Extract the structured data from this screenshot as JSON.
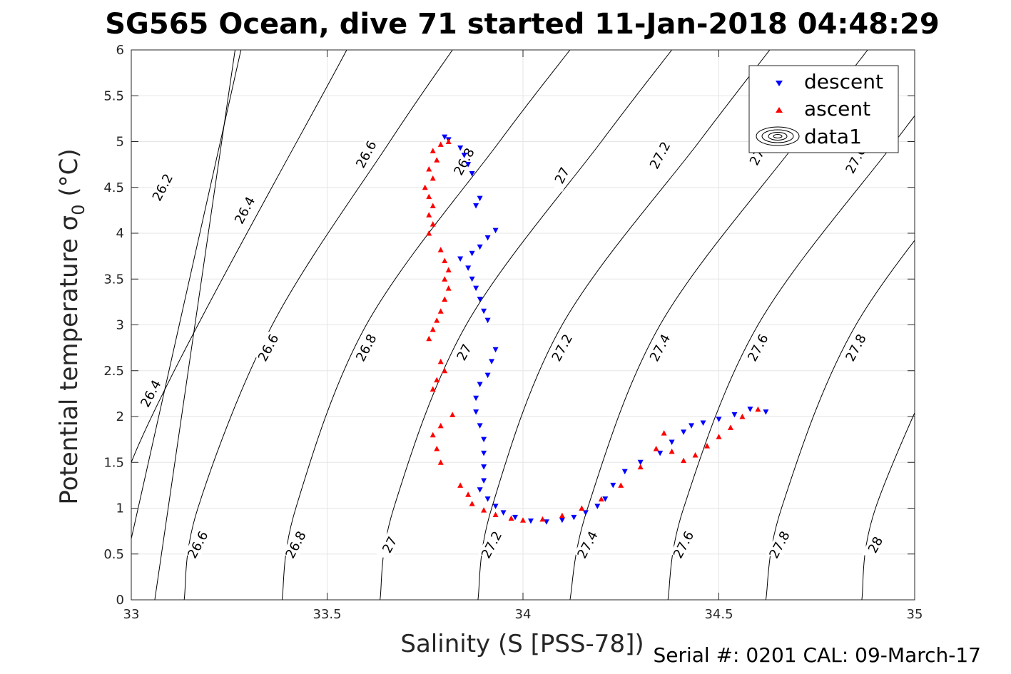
{
  "chart_data": {
    "type": "scatter",
    "title": "SG565 Ocean, dive 71 started 11-Jan-2018 04:48:29",
    "xlabel": "Salinity (S [PSS-78])",
    "ylabel": "Potential temperature σ",
    "ylabel_sub": "0",
    "ylabel_unit": " (°C)",
    "footer": "Serial #: 0201  CAL: 09-March-17",
    "xlim": [
      33,
      35
    ],
    "ylim": [
      0,
      6
    ],
    "xticks": [
      "33",
      "33.5",
      "34",
      "34.5",
      "35"
    ],
    "yticks": [
      "0",
      "0.5",
      "1",
      "1.5",
      "2",
      "2.5",
      "3",
      "3.5",
      "4",
      "4.5",
      "5",
      "5.5",
      "6"
    ],
    "grid": true,
    "legend_position": "top-right",
    "legend": [
      "descent",
      "ascent",
      "data1"
    ],
    "colors": {
      "descent": "#0000ff",
      "ascent": "#ff0000",
      "contour": "#000000"
    },
    "contour_levels": [
      {
        "level": "26",
        "anchors": [
          [
            0,
            32.965
          ],
          [
            6,
            33.28
          ]
        ]
      },
      {
        "level": "26.2",
        "anchors": [
          [
            0,
            33.06
          ],
          [
            6,
            33.265
          ]
        ]
      },
      {
        "level": "26.4",
        "anchors": [
          [
            0,
            32.995
          ],
          [
            1.5,
            33.0
          ],
          [
            6,
            33.55
          ]
        ]
      },
      {
        "level": "26.6",
        "anchors": [
          [
            0,
            33.135
          ],
          [
            1,
            33.17
          ],
          [
            3,
            33.36
          ],
          [
            5,
            33.66
          ],
          [
            6,
            33.82
          ]
        ]
      },
      {
        "level": "26.8",
        "anchors": [
          [
            0,
            33.385
          ],
          [
            1,
            33.42
          ],
          [
            3,
            33.6
          ],
          [
            5,
            33.94
          ],
          [
            6,
            34.12
          ]
        ]
      },
      {
        "level": "27",
        "anchors": [
          [
            0,
            33.635
          ],
          [
            1,
            33.67
          ],
          [
            3,
            33.855
          ],
          [
            5,
            34.2
          ],
          [
            6,
            34.38
          ]
        ]
      },
      {
        "level": "27.2",
        "anchors": [
          [
            0,
            33.885
          ],
          [
            1,
            33.92
          ],
          [
            3,
            34.1
          ],
          [
            5,
            34.45
          ],
          [
            6,
            34.63
          ]
        ]
      },
      {
        "level": "27.4",
        "anchors": [
          [
            0,
            34.12
          ],
          [
            1,
            34.165
          ],
          [
            3,
            34.35
          ],
          [
            5,
            34.7
          ],
          [
            6,
            34.88
          ]
        ]
      },
      {
        "level": "27.6",
        "anchors": [
          [
            0,
            34.37
          ],
          [
            1,
            34.41
          ],
          [
            3,
            34.6
          ],
          [
            5,
            34.95
          ],
          [
            6,
            35.13
          ]
        ]
      },
      {
        "level": "27.8",
        "anchors": [
          [
            0,
            34.62
          ],
          [
            1,
            34.66
          ],
          [
            3,
            34.85
          ],
          [
            5,
            35.2
          ]
        ]
      },
      {
        "level": "28",
        "anchors": [
          [
            0,
            34.865
          ],
          [
            1,
            34.9
          ],
          [
            3,
            35.1
          ]
        ]
      }
    ],
    "contour_labels": [
      {
        "text": "26.2",
        "x": 33.08,
        "y": 4.5
      },
      {
        "text": "26.4",
        "x": 33.29,
        "y": 4.25
      },
      {
        "text": "26.6",
        "x": 33.6,
        "y": 4.86
      },
      {
        "text": "26.8",
        "x": 33.85,
        "y": 4.78
      },
      {
        "text": "27",
        "x": 34.1,
        "y": 4.63
      },
      {
        "text": "27.2",
        "x": 34.35,
        "y": 4.85
      },
      {
        "text": "27.",
        "x": 34.6,
        "y": 4.85
      },
      {
        "text": "27.6",
        "x": 34.85,
        "y": 4.8
      },
      {
        "text": "26.4",
        "x": 33.05,
        "y": 2.25
      },
      {
        "text": "26.6",
        "x": 33.35,
        "y": 2.75
      },
      {
        "text": "26.8",
        "x": 33.6,
        "y": 2.75
      },
      {
        "text": "27",
        "x": 33.85,
        "y": 2.7
      },
      {
        "text": "27.2",
        "x": 34.1,
        "y": 2.75
      },
      {
        "text": "27.4",
        "x": 34.35,
        "y": 2.75
      },
      {
        "text": "27.6",
        "x": 34.6,
        "y": 2.75
      },
      {
        "text": "27.8",
        "x": 34.85,
        "y": 2.75
      },
      {
        "text": "26.6",
        "x": 33.17,
        "y": 0.6
      },
      {
        "text": "26.8",
        "x": 33.42,
        "y": 0.6
      },
      {
        "text": "27",
        "x": 33.66,
        "y": 0.6
      },
      {
        "text": "27.2",
        "x": 33.92,
        "y": 0.6
      },
      {
        "text": "27.4",
        "x": 34.165,
        "y": 0.6
      },
      {
        "text": "27.6",
        "x": 34.41,
        "y": 0.6
      },
      {
        "text": "27.8",
        "x": 34.655,
        "y": 0.6
      },
      {
        "text": "28",
        "x": 34.9,
        "y": 0.6
      }
    ],
    "series": [
      {
        "name": "descent",
        "marker": "triangle-down",
        "color": "#0000ff",
        "points": [
          [
            33.8,
            5.05
          ],
          [
            33.81,
            5.02
          ],
          [
            33.84,
            4.93
          ],
          [
            33.85,
            4.85
          ],
          [
            33.86,
            4.75
          ],
          [
            33.87,
            4.65
          ],
          [
            33.88,
            4.3
          ],
          [
            33.89,
            4.38
          ],
          [
            33.93,
            4.03
          ],
          [
            33.91,
            3.95
          ],
          [
            33.89,
            3.85
          ],
          [
            33.87,
            3.78
          ],
          [
            33.84,
            3.72
          ],
          [
            33.86,
            3.62
          ],
          [
            33.87,
            3.5
          ],
          [
            33.88,
            3.4
          ],
          [
            33.89,
            3.28
          ],
          [
            33.9,
            3.15
          ],
          [
            33.91,
            3.05
          ],
          [
            33.93,
            2.73
          ],
          [
            33.92,
            2.6
          ],
          [
            33.91,
            2.45
          ],
          [
            33.89,
            2.35
          ],
          [
            33.88,
            2.2
          ],
          [
            33.88,
            2.05
          ],
          [
            33.89,
            1.9
          ],
          [
            33.9,
            1.75
          ],
          [
            33.9,
            1.6
          ],
          [
            33.9,
            1.45
          ],
          [
            33.9,
            1.3
          ],
          [
            33.89,
            1.2
          ],
          [
            33.91,
            1.1
          ],
          [
            33.93,
            1.02
          ],
          [
            33.95,
            0.95
          ],
          [
            33.98,
            0.9
          ],
          [
            34.02,
            0.86
          ],
          [
            34.06,
            0.85
          ],
          [
            34.1,
            0.87
          ],
          [
            34.13,
            0.9
          ],
          [
            34.16,
            0.95
          ],
          [
            34.19,
            1.02
          ],
          [
            34.21,
            1.1
          ],
          [
            34.23,
            1.25
          ],
          [
            34.26,
            1.4
          ],
          [
            34.3,
            1.5
          ],
          [
            34.35,
            1.6
          ],
          [
            34.38,
            1.72
          ],
          [
            34.41,
            1.83
          ],
          [
            34.43,
            1.9
          ],
          [
            34.46,
            1.93
          ],
          [
            34.5,
            1.97
          ],
          [
            34.54,
            2.02
          ],
          [
            34.58,
            2.08
          ],
          [
            34.62,
            2.05
          ]
        ]
      },
      {
        "name": "ascent",
        "marker": "triangle-up",
        "color": "#ff0000",
        "points": [
          [
            33.81,
            5.0
          ],
          [
            33.79,
            4.97
          ],
          [
            33.77,
            4.9
          ],
          [
            33.78,
            4.8
          ],
          [
            33.76,
            4.7
          ],
          [
            33.77,
            4.6
          ],
          [
            33.75,
            4.5
          ],
          [
            33.76,
            4.4
          ],
          [
            33.77,
            4.3
          ],
          [
            33.76,
            4.2
          ],
          [
            33.77,
            4.1
          ],
          [
            33.76,
            4.0
          ],
          [
            33.79,
            3.82
          ],
          [
            33.8,
            3.7
          ],
          [
            33.81,
            3.6
          ],
          [
            33.8,
            3.5
          ],
          [
            33.81,
            3.4
          ],
          [
            33.8,
            3.28
          ],
          [
            33.79,
            3.15
          ],
          [
            33.78,
            3.05
          ],
          [
            33.77,
            2.95
          ],
          [
            33.76,
            2.85
          ],
          [
            33.79,
            2.6
          ],
          [
            33.8,
            2.5
          ],
          [
            33.78,
            2.4
          ],
          [
            33.77,
            2.3
          ],
          [
            33.82,
            2.02
          ],
          [
            33.79,
            1.9
          ],
          [
            33.77,
            1.8
          ],
          [
            33.78,
            1.65
          ],
          [
            33.79,
            1.5
          ],
          [
            33.84,
            1.25
          ],
          [
            33.86,
            1.15
          ],
          [
            33.87,
            1.05
          ],
          [
            33.9,
            0.98
          ],
          [
            33.93,
            0.93
          ],
          [
            33.97,
            0.89
          ],
          [
            34.0,
            0.87
          ],
          [
            34.05,
            0.88
          ],
          [
            34.1,
            0.92
          ],
          [
            34.15,
            1.0
          ],
          [
            34.2,
            1.1
          ],
          [
            34.25,
            1.25
          ],
          [
            34.3,
            1.45
          ],
          [
            34.34,
            1.65
          ],
          [
            34.36,
            1.82
          ],
          [
            34.38,
            1.62
          ],
          [
            34.41,
            1.52
          ],
          [
            34.44,
            1.58
          ],
          [
            34.47,
            1.68
          ],
          [
            34.5,
            1.78
          ],
          [
            34.53,
            1.88
          ],
          [
            34.56,
            2.0
          ],
          [
            34.6,
            2.08
          ]
        ]
      }
    ]
  }
}
